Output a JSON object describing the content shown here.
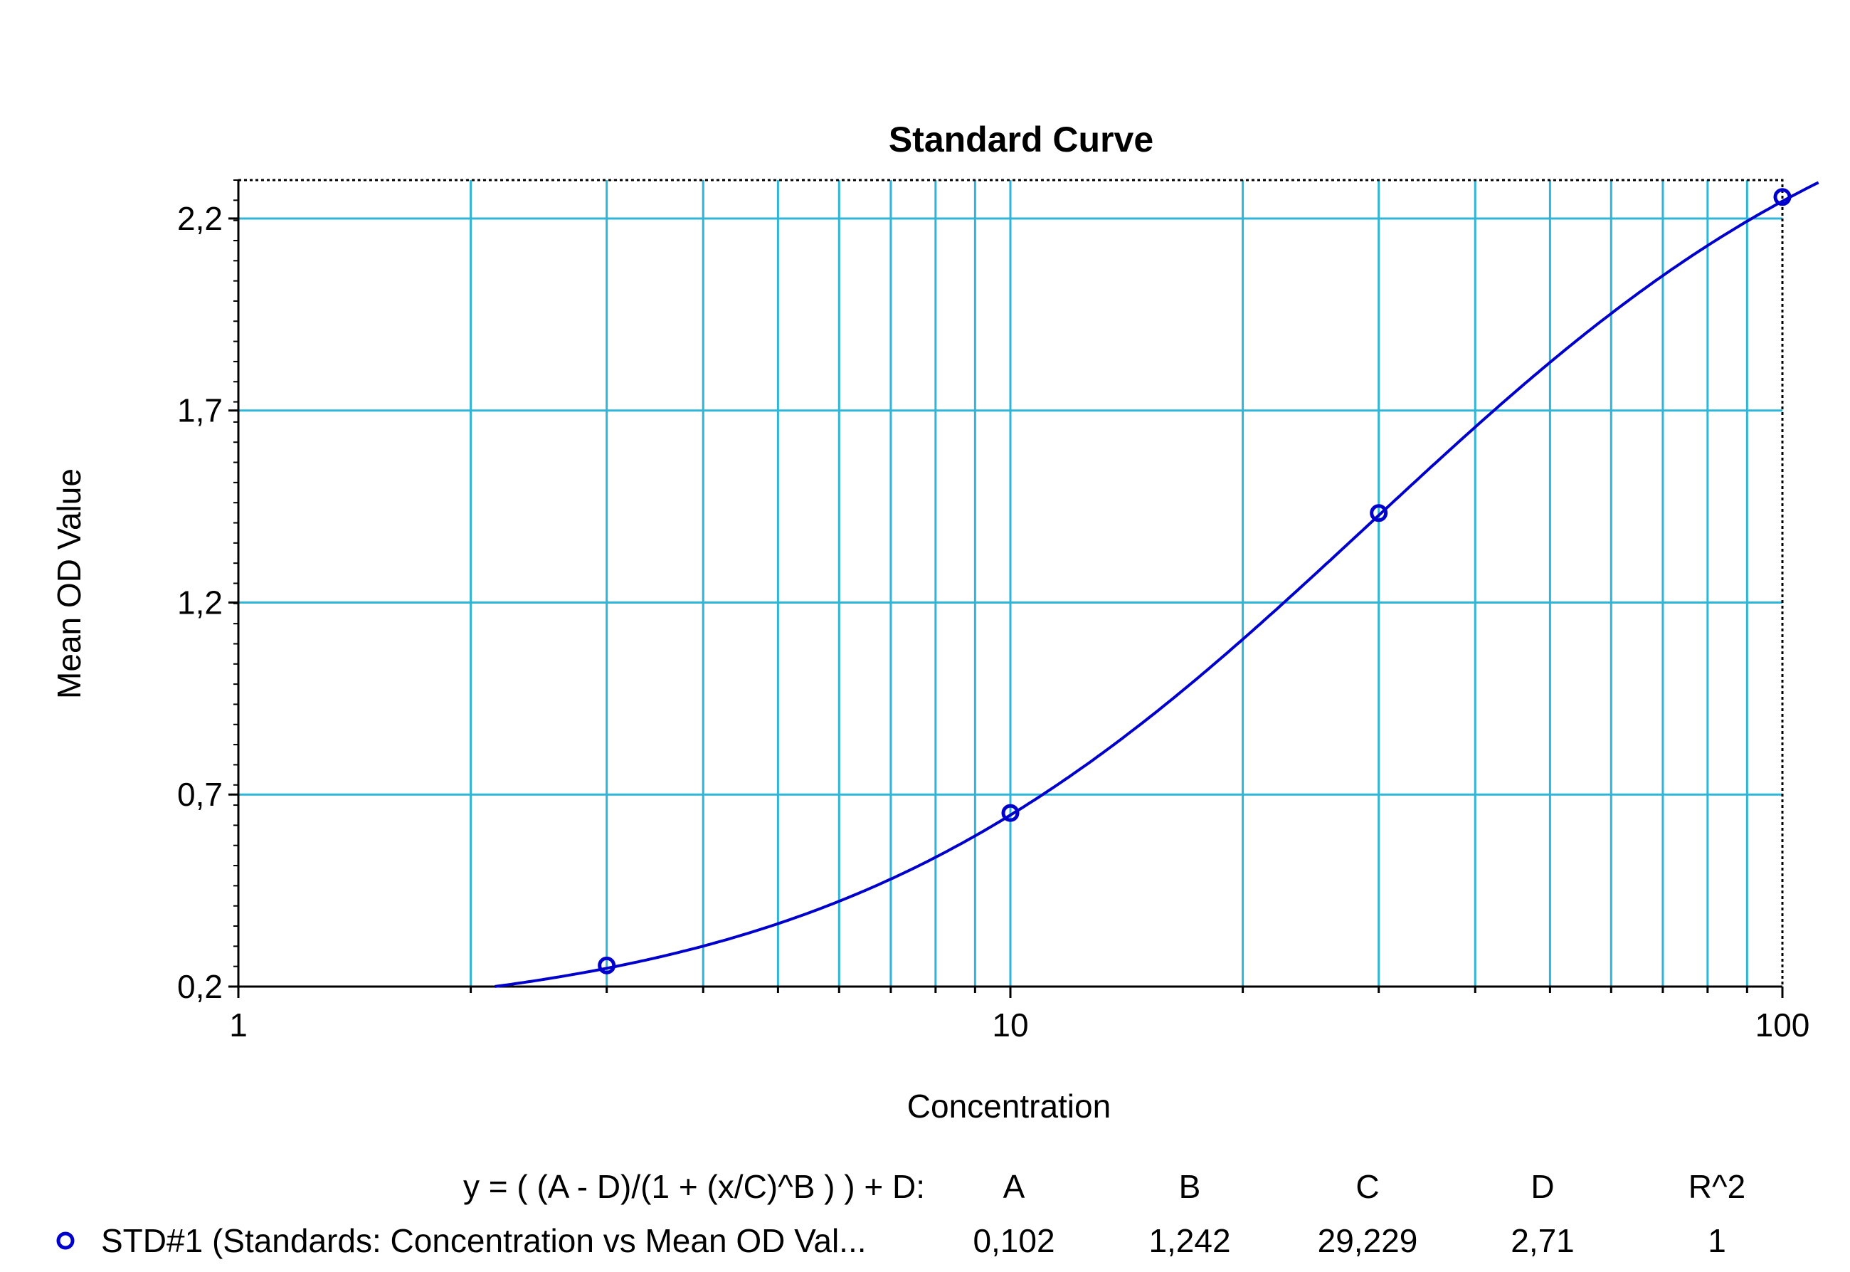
{
  "chart_data": {
    "type": "scatter",
    "title": "Standard Curve",
    "xlabel": "Concentration",
    "ylabel": "Mean OD Value",
    "x_scale": "log",
    "xlim": [
      1,
      100
    ],
    "ylim": [
      0.2,
      2.3
    ],
    "x_ticks": [
      1,
      10,
      100
    ],
    "x_tick_labels": [
      "1",
      "10",
      "100"
    ],
    "y_ticks": [
      0.2,
      0.7,
      1.2,
      1.7,
      2.2
    ],
    "y_tick_labels": [
      "0,2",
      "0,7",
      "1,2",
      "1,7",
      "2,2"
    ],
    "grid": true,
    "series": [
      {
        "name": "STD#1 (Standards: Concentration vs Mean OD Val...",
        "marker": "circle",
        "color": "#0000cc",
        "x": [
          3,
          10,
          30,
          100
        ],
        "y": [
          0.255,
          0.652,
          1.433,
          2.256
        ]
      }
    ],
    "fit": {
      "equation": "y = ( (A - D)/(1 + (x/C)^B ) ) + D:",
      "params": {
        "A": 0.102,
        "B": 1.242,
        "C": 29.229,
        "D": 2.71
      },
      "param_headers": [
        "A",
        "B",
        "C",
        "D",
        "R^2"
      ],
      "param_values": [
        "0,102",
        "1,242",
        "29,229",
        "2,71",
        "1"
      ],
      "color": "#0000cc"
    },
    "colors": {
      "grid": "#2eb5d8",
      "curve": "#0000cc",
      "axis": "#000000"
    }
  }
}
